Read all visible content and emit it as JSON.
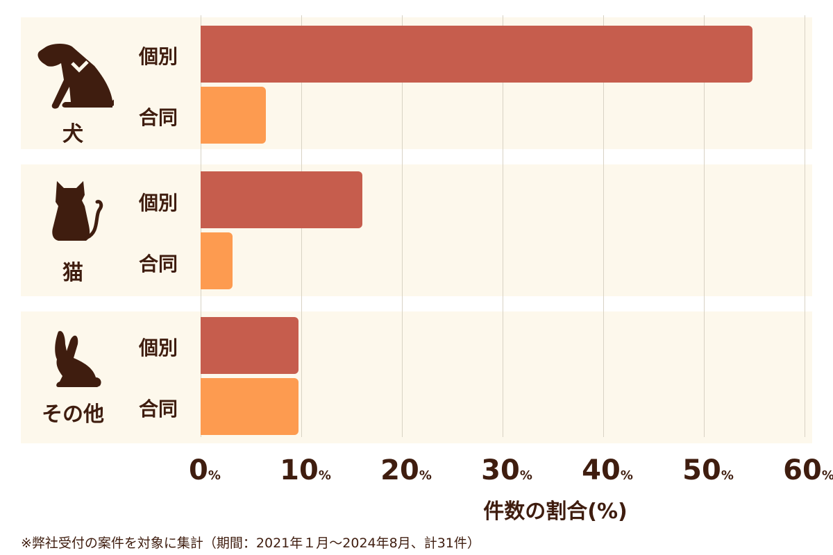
{
  "chart_data": {
    "type": "bar",
    "orientation": "horizontal",
    "title": "",
    "xlabel": "件数の割合(%)",
    "ylabel": "",
    "xlim": [
      0,
      60
    ],
    "ticks": [
      "0",
      "10",
      "20",
      "30",
      "40",
      "50",
      "60"
    ],
    "tick_suffix": "%",
    "grid": true,
    "groups": [
      {
        "label": "犬",
        "icon": "dog-icon",
        "bars": [
          {
            "label": "個別",
            "value": 54.8
          },
          {
            "label": "合同",
            "value": 6.5
          }
        ]
      },
      {
        "label": "猫",
        "icon": "cat-icon",
        "bars": [
          {
            "label": "個別",
            "value": 16.1
          },
          {
            "label": "合同",
            "value": 3.2
          }
        ]
      },
      {
        "label": "その他",
        "icon": "rabbit-icon",
        "bars": [
          {
            "label": "個別",
            "value": 9.7
          },
          {
            "label": "合同",
            "value": 9.7
          }
        ]
      }
    ],
    "series": [
      {
        "name": "個別",
        "color": "#c65d4d",
        "values": [
          54.8,
          16.1,
          9.7
        ]
      },
      {
        "name": "合同",
        "color": "#fd9b50",
        "values": [
          6.5,
          3.2,
          9.7
        ]
      }
    ],
    "categories": [
      "犬",
      "猫",
      "その他"
    ],
    "note": "※弊社受付の案件を対象に集計（期間：2021年１月～2024年8月、計31件）"
  },
  "colors": {
    "individual": "#c65d4d",
    "joint": "#fd9b50",
    "panel": "#fdf8ec",
    "text": "#3f1d0f"
  }
}
